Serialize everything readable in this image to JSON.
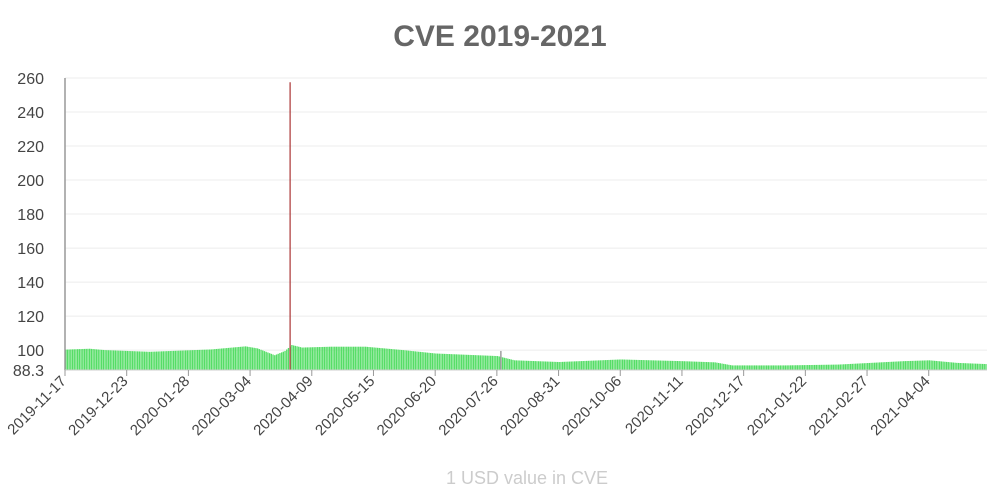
{
  "chart_data": {
    "type": "bar",
    "title": "CVE 2019-2021",
    "xlabel": "1 USD value in CVE",
    "ylabel": "",
    "ylim": [
      88.3,
      260
    ],
    "y_ticks": [
      260,
      240,
      220,
      200,
      180,
      160,
      140,
      120,
      100,
      88.3
    ],
    "x_tick_labels": [
      "2019-11-17",
      "2019-12-23",
      "2020-01-28",
      "2020-03-04",
      "2020-04-09",
      "2020-05-15",
      "2020-06-20",
      "2020-07-26",
      "2020-08-31",
      "2020-10-06",
      "2020-11-11",
      "2020-12-17",
      "2021-01-22",
      "2021-02-27",
      "2021-04-04"
    ],
    "start_date": "2019-11-17",
    "end_date": "2021-05-07",
    "grid": true,
    "series": [
      {
        "color": "#55dd66",
        "spike_color": "#aa3333",
        "keyframes": [
          {
            "date": "2019-11-17",
            "value": 100.3
          },
          {
            "date": "2019-12-01",
            "value": 100.8
          },
          {
            "date": "2019-12-10",
            "value": 100.0
          },
          {
            "date": "2020-01-05",
            "value": 99.0
          },
          {
            "date": "2020-02-10",
            "value": 100.4
          },
          {
            "date": "2020-03-01",
            "value": 102.2
          },
          {
            "date": "2020-03-08",
            "value": 101.0
          },
          {
            "date": "2020-03-18",
            "value": 97.0
          },
          {
            "date": "2020-03-24",
            "value": 99.5
          },
          {
            "date": "2020-03-28",
            "value": 103.0
          },
          {
            "date": "2020-04-03",
            "value": 101.5
          },
          {
            "date": "2020-04-20",
            "value": 102.0
          },
          {
            "date": "2020-05-10",
            "value": 102.0
          },
          {
            "date": "2020-06-01",
            "value": 100.0
          },
          {
            "date": "2020-06-20",
            "value": 98.0
          },
          {
            "date": "2020-07-26",
            "value": 96.5
          },
          {
            "date": "2020-08-05",
            "value": 94.0
          },
          {
            "date": "2020-08-31",
            "value": 93.0
          },
          {
            "date": "2020-10-06",
            "value": 94.5
          },
          {
            "date": "2020-11-11",
            "value": 93.5
          },
          {
            "date": "2020-11-30",
            "value": 92.8
          },
          {
            "date": "2020-12-10",
            "value": 91.0
          },
          {
            "date": "2021-01-10",
            "value": 91.0
          },
          {
            "date": "2021-02-10",
            "value": 91.5
          },
          {
            "date": "2021-03-20",
            "value": 93.5
          },
          {
            "date": "2021-04-04",
            "value": 94.0
          },
          {
            "date": "2021-04-20",
            "value": 92.5
          },
          {
            "date": "2021-05-07",
            "value": 91.8
          }
        ],
        "spikes": [
          {
            "date": "2020-03-27",
            "value": 257.5
          },
          {
            "date": "2020-07-28",
            "value": 99.5
          }
        ]
      }
    ]
  }
}
